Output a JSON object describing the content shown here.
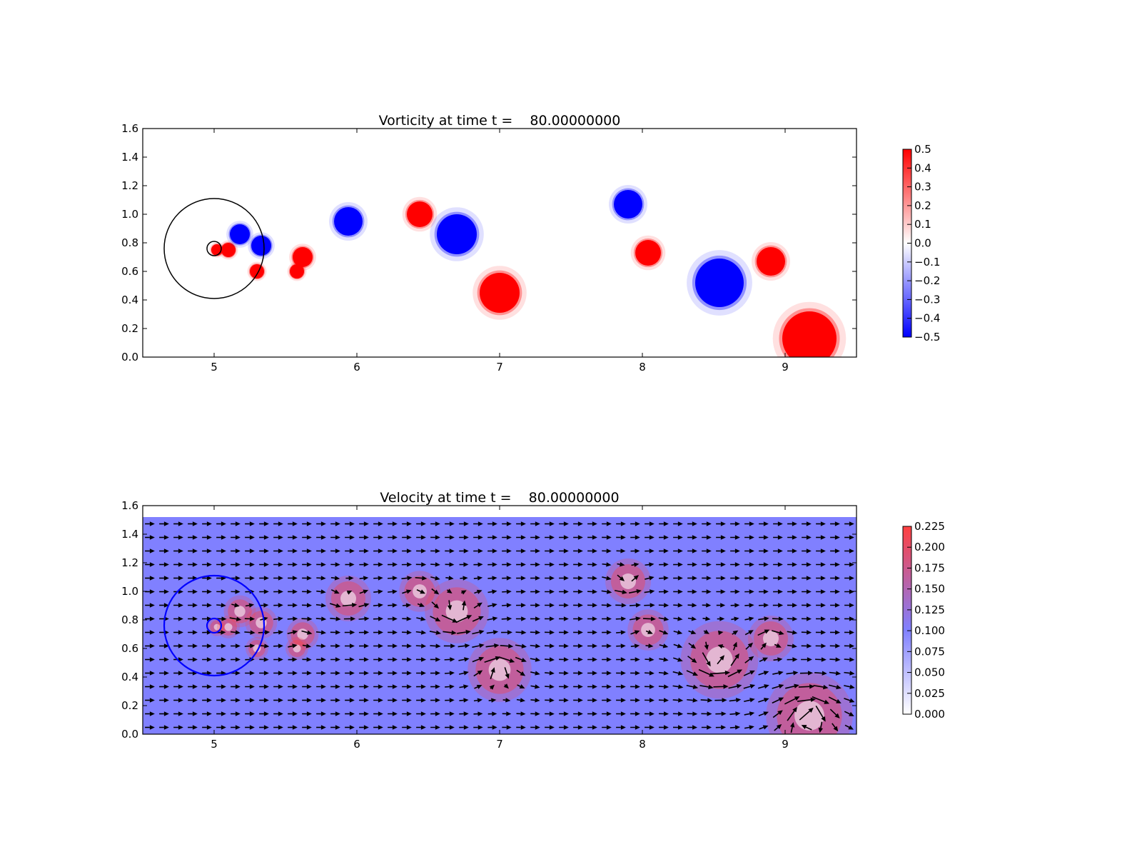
{
  "chart_data": [
    {
      "type": "heatmap",
      "title": "Vorticity at time t =    80.00000000",
      "xlabel": "",
      "ylabel": "",
      "xlim": [
        4.5,
        9.5
      ],
      "ylim": [
        0.0,
        1.6
      ],
      "x_ticks": [
        "5",
        "6",
        "7",
        "8",
        "9"
      ],
      "y_ticks": [
        "0.0",
        "0.2",
        "0.4",
        "0.6",
        "0.8",
        "1.0",
        "1.2",
        "1.4",
        "1.6"
      ],
      "colormap": "bwr",
      "colors": {
        "negative": "#0000ff",
        "zero": "#ffffff",
        "positive": "#ff0000"
      },
      "colorbar": {
        "range": [
          -0.5,
          0.5
        ],
        "ticks": [
          "0.5",
          "0.4",
          "0.3",
          "0.2",
          "0.1",
          "0.0",
          "−0.1",
          "−0.2",
          "−0.3",
          "−0.4",
          "−0.5"
        ]
      },
      "vortices": [
        {
          "x": 5.02,
          "y": 0.75,
          "r": 0.04,
          "w": 0.5
        },
        {
          "x": 5.1,
          "y": 0.75,
          "r": 0.05,
          "w": 0.5
        },
        {
          "x": 5.18,
          "y": 0.86,
          "r": 0.07,
          "w": -0.5
        },
        {
          "x": 5.33,
          "y": 0.78,
          "r": 0.07,
          "w": -0.5
        },
        {
          "x": 5.3,
          "y": 0.6,
          "r": 0.05,
          "w": 0.5
        },
        {
          "x": 5.62,
          "y": 0.7,
          "r": 0.07,
          "w": 0.5
        },
        {
          "x": 5.58,
          "y": 0.6,
          "r": 0.05,
          "w": 0.5
        },
        {
          "x": 5.94,
          "y": 0.95,
          "r": 0.1,
          "w": -0.5
        },
        {
          "x": 6.44,
          "y": 1.0,
          "r": 0.09,
          "w": 0.5
        },
        {
          "x": 6.7,
          "y": 0.86,
          "r": 0.14,
          "w": -0.5
        },
        {
          "x": 7.0,
          "y": 0.45,
          "r": 0.14,
          "w": 0.5
        },
        {
          "x": 7.9,
          "y": 1.07,
          "r": 0.1,
          "w": -0.5
        },
        {
          "x": 8.04,
          "y": 0.73,
          "r": 0.09,
          "w": 0.5
        },
        {
          "x": 8.54,
          "y": 0.52,
          "r": 0.17,
          "w": -0.5
        },
        {
          "x": 8.9,
          "y": 0.67,
          "r": 0.1,
          "w": 0.5
        },
        {
          "x": 9.17,
          "y": 0.13,
          "r": 0.19,
          "w": 0.5
        }
      ],
      "circles": [
        {
          "x": 5.0,
          "y": 0.76,
          "r": 0.35,
          "color": "#000000"
        },
        {
          "x": 5.0,
          "y": 0.76,
          "r": 0.05,
          "color": "#000000"
        }
      ]
    },
    {
      "type": "heatmap",
      "title": "Velocity at time t =    80.00000000",
      "xlabel": "",
      "ylabel": "",
      "xlim": [
        4.5,
        9.5
      ],
      "ylim": [
        0.0,
        1.6
      ],
      "field_top": 1.52,
      "x_ticks": [
        "5",
        "6",
        "7",
        "8",
        "9"
      ],
      "y_ticks": [
        "0.0",
        "0.2",
        "0.4",
        "0.6",
        "0.8",
        "1.0",
        "1.2",
        "1.4",
        "1.6"
      ],
      "colormap": "white-blue-red",
      "colors": {
        "low": "#ffffff",
        "mid": "#8080ff",
        "high": "#ff4040"
      },
      "background_speed": 0.1,
      "colorbar": {
        "range": [
          0.0,
          0.225
        ],
        "ticks": [
          "0.225",
          "0.200",
          "0.175",
          "0.150",
          "0.125",
          "0.100",
          "0.075",
          "0.050",
          "0.025",
          "0.000"
        ]
      },
      "overlay": "quiver",
      "arrow_color": "#000000",
      "circles": [
        {
          "x": 5.0,
          "y": 0.76,
          "r": 0.35,
          "color": "#0000ff"
        },
        {
          "x": 5.0,
          "y": 0.76,
          "r": 0.05,
          "color": "#0000ff"
        }
      ]
    }
  ]
}
